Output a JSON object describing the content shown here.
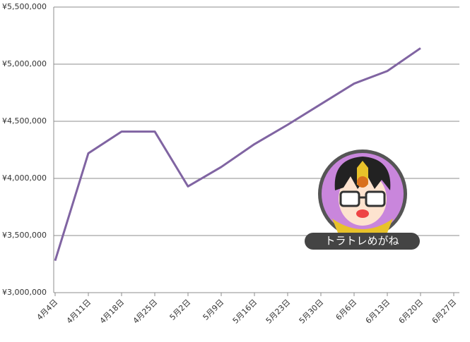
{
  "chart_data": {
    "type": "line",
    "categories": [
      "4月4日",
      "4月11日",
      "4月18日",
      "4月25日",
      "5月2日",
      "5月9日",
      "5月16日",
      "5月23日",
      "5月30日",
      "6月6日",
      "6月13日",
      "6月20日",
      "6月27日"
    ],
    "series": [
      {
        "color": "#8064a2",
        "values": [
          3280000,
          4220000,
          4410000,
          4410000,
          3930000,
          4100000,
          4300000,
          4470000,
          4650000,
          4830000,
          4940000,
          5140000,
          null
        ]
      }
    ],
    "ylim": [
      3000000,
      5500000
    ],
    "yticks": [
      {
        "value": 3000000,
        "label": "¥3,000,000"
      },
      {
        "value": 3500000,
        "label": "¥3,500,000"
      },
      {
        "value": 4000000,
        "label": "¥4,000,000"
      },
      {
        "value": 4500000,
        "label": "¥4,500,000"
      },
      {
        "value": 5000000,
        "label": "¥5,000,000"
      },
      {
        "value": 5500000,
        "label": "¥5,500,000"
      }
    ],
    "grid": true,
    "annotation": "トラトレめがね"
  }
}
